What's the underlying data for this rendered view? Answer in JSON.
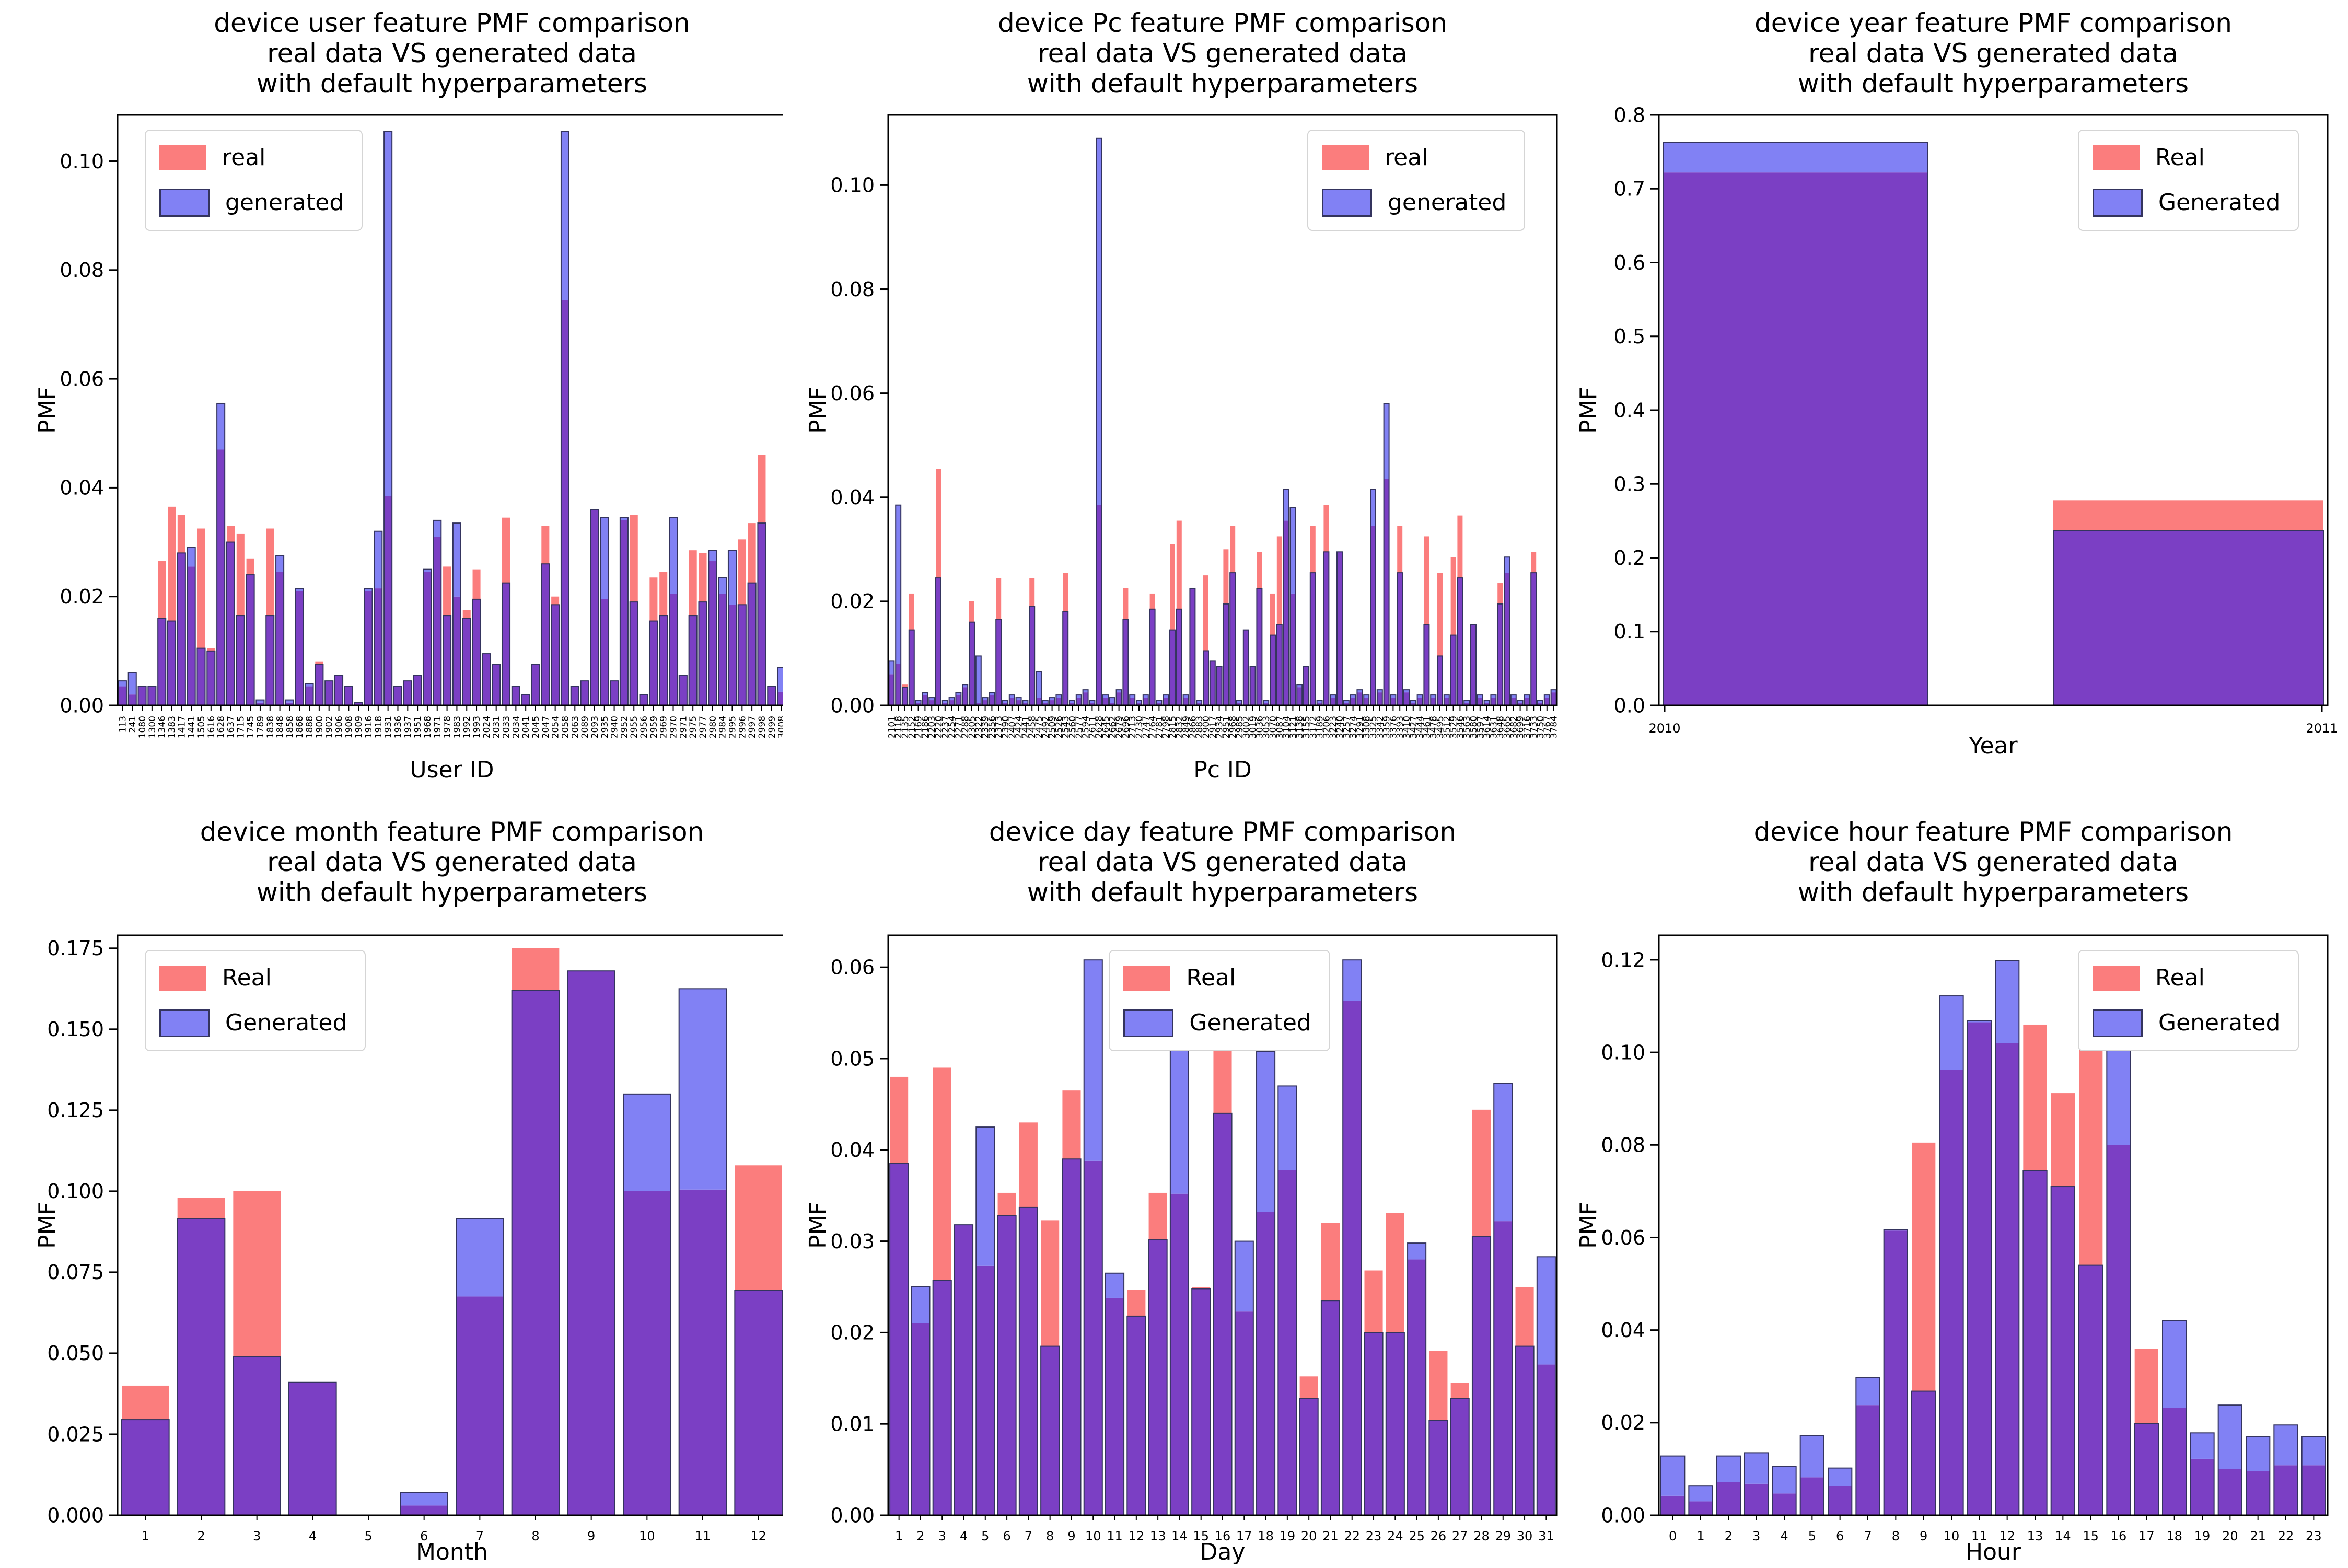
{
  "colors": {
    "real": "#fb7d7d",
    "generated": "#8181f4",
    "overlap": "#7b3fc4",
    "generated_edge": "#34345e",
    "axis": "#000000",
    "legend_border": "#d5d5d5"
  },
  "chart_data": [
    {
      "type": "bar",
      "title": "device user feature PMF comparison\nreal data VS generated data\nwith default hyperparameters",
      "xlabel": "User ID",
      "ylabel": "PMF",
      "legend": {
        "labels": [
          "real",
          "generated"
        ],
        "loc": "upper left"
      },
      "y": {
        "max": 0.1085,
        "ticks": [
          0.0,
          0.02,
          0.04,
          0.06,
          0.08,
          0.1
        ],
        "dp": 2
      },
      "x_rot": true,
      "bar_frac": 0.8,
      "categories": [
        "113",
        "241",
        "1080",
        "1300",
        "1346",
        "1383",
        "1417",
        "1441",
        "1505",
        "1616",
        "1628",
        "1637",
        "1715",
        "1745",
        "1789",
        "1838",
        "1848",
        "1858",
        "1868",
        "1888",
        "1900",
        "1902",
        "1906",
        "1908",
        "1909",
        "1916",
        "1918",
        "1931",
        "1936",
        "1937",
        "1951",
        "1968",
        "1971",
        "1978",
        "1983",
        "1992",
        "1993",
        "2024",
        "2031",
        "2033",
        "2034",
        "2041",
        "2045",
        "2047",
        "2054",
        "2058",
        "2063",
        "2089",
        "2093",
        "2935",
        "2940",
        "2952",
        "2955",
        "2956",
        "2959",
        "2969",
        "2970",
        "2971",
        "2975",
        "2977",
        "2980",
        "2984",
        "2995",
        "2996",
        "2997",
        "2998",
        "2999",
        "3008"
      ],
      "real": [
        0.0035,
        0.002,
        0.0035,
        0.0035,
        0.0265,
        0.0365,
        0.035,
        0.0255,
        0.0325,
        0.0105,
        0.047,
        0.033,
        0.0315,
        0.027,
        0.0005,
        0.0325,
        0.0245,
        0.0005,
        0.021,
        0.0035,
        0.008,
        0.0045,
        0.0055,
        0.0035,
        0.0005,
        0.021,
        0.0215,
        0.0385,
        0.0035,
        0.0045,
        0.0055,
        0.0245,
        0.031,
        0.0255,
        0.02,
        0.0175,
        0.025,
        0.0095,
        0.0075,
        0.0345,
        0.0035,
        0.002,
        0.0075,
        0.033,
        0.02,
        0.0745,
        0.0035,
        0.0045,
        0.036,
        0.0195,
        0.0045,
        0.034,
        0.035,
        0.002,
        0.0235,
        0.0245,
        0.0205,
        0.0055,
        0.0285,
        0.028,
        0.0265,
        0.0205,
        0.0185,
        0.0305,
        0.0335,
        0.046,
        0.0035,
        0.0025
      ],
      "generated": [
        0.0045,
        0.006,
        0.0035,
        0.0035,
        0.016,
        0.0155,
        0.028,
        0.029,
        0.0105,
        0.01,
        0.0555,
        0.03,
        0.0165,
        0.024,
        0.001,
        0.0165,
        0.0275,
        0.001,
        0.0215,
        0.004,
        0.0075,
        0.0045,
        0.0055,
        0.0035,
        0.0005,
        0.0215,
        0.032,
        0.1055,
        0.0035,
        0.0045,
        0.0055,
        0.025,
        0.034,
        0.0165,
        0.0335,
        0.016,
        0.0195,
        0.0095,
        0.0075,
        0.0225,
        0.0035,
        0.002,
        0.0075,
        0.026,
        0.0185,
        0.1055,
        0.0035,
        0.0045,
        0.036,
        0.0345,
        0.0045,
        0.0345,
        0.019,
        0.002,
        0.0155,
        0.0165,
        0.0345,
        0.0055,
        0.0165,
        0.019,
        0.0285,
        0.0235,
        0.0285,
        0.0185,
        0.0225,
        0.0335,
        0.0035,
        0.007
      ]
    },
    {
      "type": "bar",
      "title": "device Pc feature PMF comparison\nreal data VS generated data\nwith default hyperparameters",
      "xlabel": "Pc ID",
      "ylabel": "PMF",
      "legend": {
        "labels": [
          "real",
          "generated"
        ],
        "loc": "upper right"
      },
      "y": {
        "max": 0.1135,
        "ticks": [
          0.0,
          0.02,
          0.04,
          0.06,
          0.08,
          0.1
        ],
        "dp": 2
      },
      "x_rot": true,
      "bar_frac": 0.78,
      "categories": [
        "2101",
        "2118",
        "2135",
        "2152",
        "2169",
        "2186",
        "2203",
        "2220",
        "2237",
        "2254",
        "2271",
        "2288",
        "2305",
        "2322",
        "2339",
        "2356",
        "2373",
        "2390",
        "2407",
        "2424",
        "2441",
        "2458",
        "2475",
        "2492",
        "2509",
        "2526",
        "2543",
        "2560",
        "2577",
        "2594",
        "2611",
        "2628",
        "2645",
        "2662",
        "2679",
        "2696",
        "2713",
        "2730",
        "2747",
        "2764",
        "2781",
        "2798",
        "2815",
        "2832",
        "2849",
        "2866",
        "2883",
        "2900",
        "2917",
        "2934",
        "2951",
        "2968",
        "2985",
        "3002",
        "3019",
        "3036",
        "3053",
        "3070",
        "3087",
        "3104",
        "3121",
        "3138",
        "3155",
        "3172",
        "3189",
        "3206",
        "3223",
        "3240",
        "3257",
        "3274",
        "3291",
        "3308",
        "3325",
        "3342",
        "3359",
        "3376",
        "3393",
        "3410",
        "3427",
        "3444",
        "3461",
        "3478",
        "3495",
        "3512",
        "3529",
        "3546",
        "3563",
        "3580",
        "3597",
        "3614",
        "3631",
        "3648",
        "3665",
        "3682",
        "3699",
        "3716",
        "3733",
        "3750",
        "3767",
        "3784"
      ],
      "real": [
        0.006,
        0.008,
        0.004,
        0.0215,
        0.0005,
        0.002,
        0.001,
        0.0455,
        0.0005,
        0.001,
        0.002,
        0.0035,
        0.02,
        0.0005,
        0.001,
        0.002,
        0.0245,
        0.0005,
        0.0015,
        0.001,
        0.0005,
        0.0245,
        0.0015,
        0.0005,
        0.001,
        0.0015,
        0.0255,
        0.0005,
        0.0015,
        0.0025,
        0.0005,
        0.0385,
        0.0015,
        0.0005,
        0.0025,
        0.0225,
        0.0015,
        0.0005,
        0.0015,
        0.0215,
        0.0005,
        0.0015,
        0.031,
        0.0355,
        0.0015,
        0.0225,
        0.0005,
        0.025,
        0.0085,
        0.0075,
        0.03,
        0.0345,
        0.0005,
        0.0145,
        0.0075,
        0.0295,
        0.0005,
        0.0215,
        0.0325,
        0.0355,
        0.0215,
        0.0035,
        0.0075,
        0.0345,
        0.0005,
        0.0385,
        0.0015,
        0.0295,
        0.0005,
        0.0015,
        0.0025,
        0.0015,
        0.0345,
        0.0025,
        0.0435,
        0.0015,
        0.0345,
        0.0025,
        0.0005,
        0.0015,
        0.0325,
        0.0015,
        0.0255,
        0.0015,
        0.0285,
        0.0365,
        0.0005,
        0.0155,
        0.0015,
        0.0005,
        0.0015,
        0.0235,
        0.0255,
        0.0015,
        0.0005,
        0.0015,
        0.0295,
        0.0005,
        0.0015,
        0.0025
      ],
      "generated": [
        0.0085,
        0.0385,
        0.0035,
        0.0145,
        0.001,
        0.0025,
        0.0015,
        0.0245,
        0.001,
        0.0015,
        0.0025,
        0.004,
        0.016,
        0.0095,
        0.0015,
        0.0025,
        0.0165,
        0.001,
        0.002,
        0.0015,
        0.001,
        0.019,
        0.0065,
        0.001,
        0.0015,
        0.002,
        0.018,
        0.001,
        0.002,
        0.003,
        0.001,
        0.109,
        0.002,
        0.0015,
        0.003,
        0.0165,
        0.002,
        0.001,
        0.002,
        0.0185,
        0.001,
        0.002,
        0.0145,
        0.0185,
        0.002,
        0.0225,
        0.001,
        0.0105,
        0.0085,
        0.0075,
        0.0195,
        0.0255,
        0.001,
        0.0145,
        0.0075,
        0.0225,
        0.001,
        0.0135,
        0.0155,
        0.0415,
        0.038,
        0.004,
        0.0075,
        0.0255,
        0.001,
        0.0295,
        0.002,
        0.0295,
        0.001,
        0.002,
        0.003,
        0.002,
        0.0415,
        0.003,
        0.058,
        0.002,
        0.0255,
        0.003,
        0.001,
        0.002,
        0.0155,
        0.002,
        0.0095,
        0.002,
        0.0135,
        0.0245,
        0.001,
        0.0155,
        0.002,
        0.001,
        0.002,
        0.0195,
        0.0285,
        0.002,
        0.001,
        0.002,
        0.0255,
        0.001,
        0.002,
        0.003
      ]
    },
    {
      "type": "bar",
      "title": "device year feature PMF comparison\nreal data VS generated data\nwith default hyperparameters",
      "xlabel": "Year",
      "ylabel": "PMF",
      "legend": {
        "labels": [
          "Real",
          "Generated"
        ],
        "loc": "upper right"
      },
      "y": {
        "max": 0.8,
        "ticks": [
          0.0,
          0.1,
          0.2,
          0.3,
          0.4,
          0.5,
          0.6,
          0.7,
          0.8
        ],
        "dp": 1
      },
      "x_rot": false,
      "wide_bars": [
        [
          8,
          515
        ],
        [
          755,
          1272
        ]
      ],
      "categories": [
        "2010",
        "2011"
      ],
      "real": [
        0.722,
        0.278
      ],
      "generated": [
        0.763,
        0.237
      ]
    },
    {
      "type": "bar",
      "title": "device month feature PMF comparison\nreal data VS generated data\nwith default hyperparameters",
      "xlabel": "Month",
      "ylabel": "PMF",
      "legend": {
        "labels": [
          "Real",
          "Generated"
        ],
        "loc": "upper left"
      },
      "y": {
        "max": 0.179,
        "ticks": [
          0.0,
          0.025,
          0.05,
          0.075,
          0.1,
          0.125,
          0.15,
          0.175
        ],
        "dp": 3
      },
      "x_rot": false,
      "bar_frac": 0.85,
      "categories": [
        "1",
        "2",
        "3",
        "4",
        "5",
        "6",
        "7",
        "8",
        "9",
        "10",
        "11",
        "12"
      ],
      "real": [
        0.04,
        0.098,
        0.1,
        0.041,
        0.0,
        0.003,
        0.0675,
        0.175,
        0.168,
        0.1,
        0.1005,
        0.108
      ],
      "generated": [
        0.0295,
        0.0915,
        0.049,
        0.041,
        0.0,
        0.007,
        0.0915,
        0.162,
        0.168,
        0.13,
        0.1625,
        0.0695
      ]
    },
    {
      "type": "bar",
      "title": "device day feature PMF comparison\nreal data VS generated data\nwith default hyperparameters",
      "xlabel": "Day",
      "ylabel": "PMF",
      "legend": {
        "labels": [
          "Real",
          "Generated"
        ],
        "loc": "upper center"
      },
      "y": {
        "max": 0.0635,
        "ticks": [
          0.0,
          0.01,
          0.02,
          0.03,
          0.04,
          0.05,
          0.06
        ],
        "dp": 2
      },
      "x_rot": false,
      "bar_frac": 0.85,
      "categories": [
        "1",
        "2",
        "3",
        "4",
        "5",
        "6",
        "7",
        "8",
        "9",
        "10",
        "11",
        "12",
        "13",
        "14",
        "15",
        "16",
        "17",
        "18",
        "19",
        "20",
        "21",
        "22",
        "23",
        "24",
        "25",
        "26",
        "27",
        "28",
        "29",
        "30",
        "31"
      ],
      "real": [
        0.048,
        0.021,
        0.049,
        0.0318,
        0.0273,
        0.0353,
        0.043,
        0.0323,
        0.0465,
        0.0388,
        0.0238,
        0.0247,
        0.0353,
        0.0352,
        0.025,
        0.0542,
        0.0223,
        0.0332,
        0.0378,
        0.0152,
        0.032,
        0.0563,
        0.0268,
        0.0331,
        0.028,
        0.018,
        0.0145,
        0.0444,
        0.0322,
        0.025,
        0.0165
      ],
      "generated": [
        0.0385,
        0.025,
        0.0257,
        0.0318,
        0.0425,
        0.0328,
        0.0337,
        0.0185,
        0.039,
        0.0608,
        0.0265,
        0.0218,
        0.0302,
        0.0545,
        0.0248,
        0.044,
        0.03,
        0.0508,
        0.047,
        0.0128,
        0.0235,
        0.0608,
        0.02,
        0.02,
        0.0298,
        0.0104,
        0.0128,
        0.0305,
        0.0473,
        0.0185,
        0.0283
      ]
    },
    {
      "type": "bar",
      "title": "device hour feature PMF comparison\nreal data VS generated data\nwith default hyperparameters",
      "xlabel": "Hour",
      "ylabel": "PMF",
      "legend": {
        "labels": [
          "Real",
          "Generated"
        ],
        "loc": "upper right"
      },
      "y": {
        "max": 0.1253,
        "ticks": [
          0.0,
          0.02,
          0.04,
          0.06,
          0.08,
          0.1,
          0.12
        ],
        "dp": 2
      },
      "x_rot": false,
      "bar_frac": 0.85,
      "categories": [
        "0",
        "1",
        "2",
        "3",
        "4",
        "5",
        "6",
        "7",
        "8",
        "9",
        "10",
        "11",
        "12",
        "13",
        "14",
        "15",
        "16",
        "17",
        "18",
        "19",
        "20",
        "21",
        "22",
        "23"
      ],
      "real": [
        0.0042,
        0.003,
        0.0072,
        0.0068,
        0.0047,
        0.0082,
        0.0063,
        0.0238,
        0.0615,
        0.0805,
        0.0962,
        0.1065,
        0.102,
        0.106,
        0.0912,
        0.1032,
        0.08,
        0.036,
        0.0232,
        0.0122,
        0.01,
        0.0095,
        0.0108,
        0.0108
      ],
      "generated": [
        0.0128,
        0.0063,
        0.0128,
        0.0135,
        0.0105,
        0.0172,
        0.0102,
        0.0297,
        0.0617,
        0.0268,
        0.1122,
        0.1068,
        0.1198,
        0.0745,
        0.071,
        0.054,
        0.1052,
        0.0198,
        0.042,
        0.0178,
        0.0238,
        0.017,
        0.0195,
        0.017
      ]
    }
  ]
}
